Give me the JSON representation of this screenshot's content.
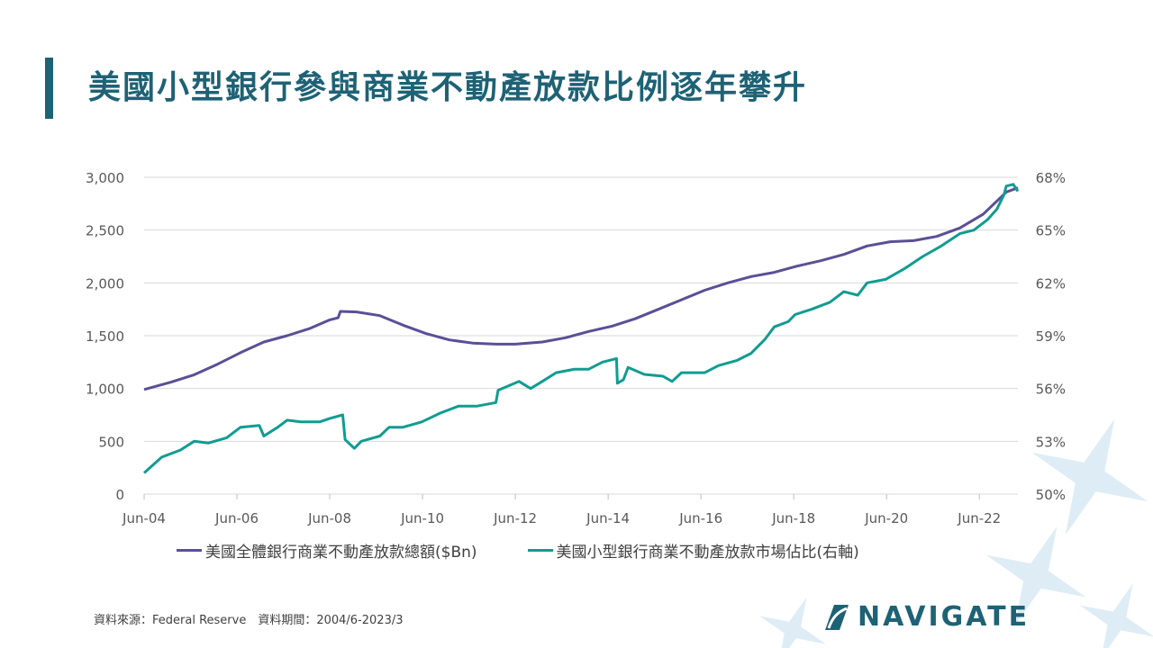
{
  "title": "美國小型銀行參與商業不動產放款比例逐年攀升",
  "source_text": "資料來源：Federal Reserve　資料期間：2004/6-2023/3",
  "logo_text": "NAVIGATE",
  "colors": {
    "brand": "#1e6275",
    "series_total": "#5b4f96",
    "series_share": "#119c91",
    "grid": "#d9d9d9",
    "axis_text": "#595959",
    "decor": "#d6e9f2"
  },
  "chart_data": {
    "type": "line",
    "x_tick_labels": [
      "Jun-04",
      "Jun-06",
      "Jun-08",
      "Jun-10",
      "Jun-12",
      "Jun-14",
      "Jun-16",
      "Jun-18",
      "Jun-20",
      "Jun-22"
    ],
    "x_tick_years": [
      2004.42,
      2006.42,
      2008.42,
      2010.42,
      2012.42,
      2014.42,
      2016.42,
      2018.42,
      2020.42,
      2022.42
    ],
    "x_range": [
      2004.42,
      2023.25
    ],
    "y_left_ticks": [
      "0",
      "500",
      "1,000",
      "1,500",
      "2,000",
      "2,500",
      "3,000"
    ],
    "y_left_range": [
      0,
      3000
    ],
    "y_right_ticks": [
      "50%",
      "53%",
      "56%",
      "59%",
      "62%",
      "65%",
      "68%"
    ],
    "y_right_range": [
      50,
      68
    ],
    "grid": true,
    "legend_position": "bottom",
    "series": [
      {
        "name": "美國全體銀行商業不動產放款總額($Bn)",
        "axis": "left",
        "points": [
          [
            2004.42,
            990
          ],
          [
            2005.0,
            1060
          ],
          [
            2005.5,
            1130
          ],
          [
            2006.0,
            1230
          ],
          [
            2006.5,
            1340
          ],
          [
            2007.0,
            1440
          ],
          [
            2007.5,
            1500
          ],
          [
            2008.0,
            1570
          ],
          [
            2008.42,
            1650
          ],
          [
            2008.6,
            1670
          ],
          [
            2008.65,
            1730
          ],
          [
            2009.0,
            1725
          ],
          [
            2009.5,
            1690
          ],
          [
            2010.0,
            1600
          ],
          [
            2010.5,
            1520
          ],
          [
            2011.0,
            1460
          ],
          [
            2011.5,
            1430
          ],
          [
            2012.0,
            1420
          ],
          [
            2012.42,
            1420
          ],
          [
            2013.0,
            1440
          ],
          [
            2013.5,
            1480
          ],
          [
            2014.0,
            1540
          ],
          [
            2014.5,
            1590
          ],
          [
            2015.0,
            1660
          ],
          [
            2015.5,
            1750
          ],
          [
            2016.0,
            1840
          ],
          [
            2016.5,
            1930
          ],
          [
            2017.0,
            2000
          ],
          [
            2017.5,
            2060
          ],
          [
            2018.0,
            2100
          ],
          [
            2018.5,
            2160
          ],
          [
            2019.0,
            2210
          ],
          [
            2019.5,
            2270
          ],
          [
            2020.0,
            2350
          ],
          [
            2020.5,
            2390
          ],
          [
            2021.0,
            2400
          ],
          [
            2021.5,
            2440
          ],
          [
            2022.0,
            2520
          ],
          [
            2022.5,
            2650
          ],
          [
            2023.0,
            2860
          ],
          [
            2023.25,
            2900
          ]
        ]
      },
      {
        "name": "美國小型銀行商業不動產放款市場佔比(右軸)",
        "axis": "right",
        "points": [
          [
            2004.42,
            51.2
          ],
          [
            2004.8,
            52.1
          ],
          [
            2005.2,
            52.5
          ],
          [
            2005.5,
            53.0
          ],
          [
            2005.8,
            52.9
          ],
          [
            2006.2,
            53.2
          ],
          [
            2006.5,
            53.8
          ],
          [
            2006.9,
            53.9
          ],
          [
            2007.0,
            53.3
          ],
          [
            2007.3,
            53.8
          ],
          [
            2007.5,
            54.2
          ],
          [
            2007.8,
            54.1
          ],
          [
            2008.2,
            54.1
          ],
          [
            2008.42,
            54.3
          ],
          [
            2008.7,
            54.5
          ],
          [
            2008.75,
            53.1
          ],
          [
            2008.95,
            52.6
          ],
          [
            2009.1,
            53.0
          ],
          [
            2009.5,
            53.3
          ],
          [
            2009.7,
            53.8
          ],
          [
            2010.0,
            53.8
          ],
          [
            2010.4,
            54.1
          ],
          [
            2010.8,
            54.6
          ],
          [
            2011.2,
            55.0
          ],
          [
            2011.6,
            55.0
          ],
          [
            2012.0,
            55.2
          ],
          [
            2012.05,
            55.9
          ],
          [
            2012.5,
            56.4
          ],
          [
            2012.75,
            56.0
          ],
          [
            2013.0,
            56.4
          ],
          [
            2013.3,
            56.9
          ],
          [
            2013.7,
            57.1
          ],
          [
            2014.0,
            57.1
          ],
          [
            2014.3,
            57.5
          ],
          [
            2014.6,
            57.7
          ],
          [
            2014.62,
            56.3
          ],
          [
            2014.75,
            56.5
          ],
          [
            2014.85,
            57.2
          ],
          [
            2015.2,
            56.8
          ],
          [
            2015.6,
            56.7
          ],
          [
            2015.8,
            56.4
          ],
          [
            2016.0,
            56.9
          ],
          [
            2016.5,
            56.9
          ],
          [
            2016.8,
            57.3
          ],
          [
            2017.2,
            57.6
          ],
          [
            2017.5,
            58.0
          ],
          [
            2017.8,
            58.8
          ],
          [
            2018.0,
            59.5
          ],
          [
            2018.3,
            59.8
          ],
          [
            2018.45,
            60.2
          ],
          [
            2018.8,
            60.5
          ],
          [
            2019.2,
            60.9
          ],
          [
            2019.5,
            61.5
          ],
          [
            2019.8,
            61.3
          ],
          [
            2020.0,
            62.0
          ],
          [
            2020.4,
            62.2
          ],
          [
            2020.8,
            62.8
          ],
          [
            2021.2,
            63.5
          ],
          [
            2021.6,
            64.1
          ],
          [
            2022.0,
            64.8
          ],
          [
            2022.3,
            65.0
          ],
          [
            2022.6,
            65.6
          ],
          [
            2022.8,
            66.2
          ],
          [
            2022.95,
            67.0
          ],
          [
            2023.0,
            67.5
          ],
          [
            2023.15,
            67.6
          ],
          [
            2023.25,
            67.2
          ]
        ]
      }
    ]
  }
}
